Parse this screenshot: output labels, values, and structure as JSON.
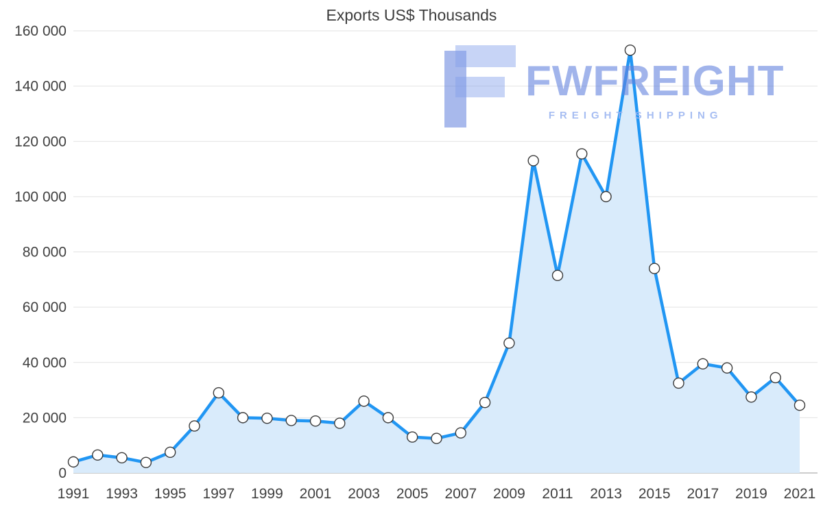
{
  "chart_data": {
    "type": "area",
    "title": "Exports US$ Thousands",
    "xlabel": "",
    "ylabel": "",
    "x": [
      1991,
      1992,
      1993,
      1994,
      1995,
      1996,
      1997,
      1998,
      1999,
      2000,
      2001,
      2002,
      2003,
      2004,
      2005,
      2006,
      2007,
      2008,
      2009,
      2010,
      2011,
      2012,
      2013,
      2014,
      2015,
      2016,
      2017,
      2018,
      2019,
      2020,
      2021
    ],
    "values": [
      4000,
      6500,
      5500,
      3800,
      7500,
      17000,
      29000,
      20000,
      19800,
      19000,
      18800,
      18000,
      26000,
      20000,
      13000,
      12500,
      14500,
      25500,
      47000,
      113000,
      71500,
      115500,
      100000,
      153000,
      74000,
      32500,
      39500,
      38000,
      27500,
      34500,
      24500
    ],
    "ylim": [
      0,
      160000
    ],
    "ytick_step": 20000,
    "xtick_step": 2,
    "grid": true,
    "legend": "none",
    "colors": {
      "line": "#2196f3",
      "fill": "#d9ebfb",
      "marker_fill": "#ffffff",
      "marker_stroke": "#3a3a3a",
      "grid": "#e2e2e2",
      "axis": "#9a9a9a",
      "label": "#404040"
    }
  },
  "watermark": {
    "brand": "FWFREIGHT",
    "tagline": "FREIGHT SHIPPING"
  }
}
